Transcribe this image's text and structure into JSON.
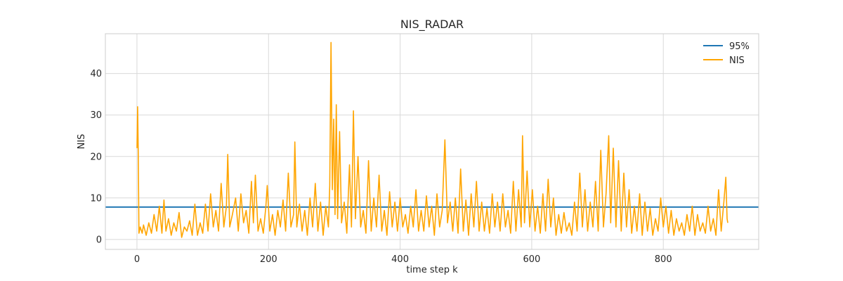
{
  "chart_data": {
    "type": "line",
    "title": "NIS_RADAR",
    "xlabel": "time step k",
    "ylabel": "NIS",
    "xlim": [
      -48,
      945
    ],
    "ylim": [
      -2.4,
      49.6
    ],
    "xticks": [
      0,
      200,
      400,
      600,
      800
    ],
    "yticks": [
      0,
      10,
      20,
      30,
      40
    ],
    "grid": true,
    "legend_position": "top-right",
    "threshold": {
      "name": "95%",
      "value": 7.815,
      "color": "#1f77b4"
    },
    "series": [
      {
        "name": "NIS",
        "color": "#ffa500",
        "points": [
          [
            0,
            22
          ],
          [
            1,
            32
          ],
          [
            2,
            21
          ],
          [
            3,
            1.5
          ],
          [
            5,
            3
          ],
          [
            8,
            1.5
          ],
          [
            10,
            3.5
          ],
          [
            14,
            1
          ],
          [
            18,
            4
          ],
          [
            22,
            1.5
          ],
          [
            26,
            6
          ],
          [
            30,
            2
          ],
          [
            34,
            8
          ],
          [
            38,
            1.5
          ],
          [
            41,
            9.5
          ],
          [
            44,
            2
          ],
          [
            48,
            5
          ],
          [
            52,
            1
          ],
          [
            56,
            4
          ],
          [
            60,
            2
          ],
          [
            64,
            6.5
          ],
          [
            68,
            0.5
          ],
          [
            72,
            3
          ],
          [
            76,
            2
          ],
          [
            80,
            4.5
          ],
          [
            84,
            1
          ],
          [
            88,
            8.5
          ],
          [
            92,
            1
          ],
          [
            96,
            4
          ],
          [
            100,
            1.5
          ],
          [
            104,
            8.5
          ],
          [
            108,
            2
          ],
          [
            112,
            11
          ],
          [
            116,
            3
          ],
          [
            120,
            7
          ],
          [
            124,
            2
          ],
          [
            128,
            13.5
          ],
          [
            132,
            3
          ],
          [
            136,
            8
          ],
          [
            138,
            20.5
          ],
          [
            141,
            3
          ],
          [
            145,
            6
          ],
          [
            150,
            10
          ],
          [
            154,
            2
          ],
          [
            158,
            11
          ],
          [
            162,
            4
          ],
          [
            166,
            7
          ],
          [
            170,
            1.5
          ],
          [
            174,
            14
          ],
          [
            177,
            4
          ],
          [
            180,
            15.5
          ],
          [
            184,
            2
          ],
          [
            188,
            5
          ],
          [
            192,
            1.5
          ],
          [
            196,
            8
          ],
          [
            198,
            13
          ],
          [
            202,
            2
          ],
          [
            206,
            6
          ],
          [
            210,
            1
          ],
          [
            214,
            7
          ],
          [
            218,
            3
          ],
          [
            222,
            9.5
          ],
          [
            226,
            2
          ],
          [
            230,
            16
          ],
          [
            234,
            3
          ],
          [
            238,
            6
          ],
          [
            240,
            23.5
          ],
          [
            243,
            3
          ],
          [
            247,
            8.5
          ],
          [
            251,
            2
          ],
          [
            255,
            7
          ],
          [
            259,
            1
          ],
          [
            263,
            10
          ],
          [
            267,
            3
          ],
          [
            271,
            13.5
          ],
          [
            275,
            2
          ],
          [
            279,
            9
          ],
          [
            283,
            1
          ],
          [
            287,
            8
          ],
          [
            291,
            3
          ],
          [
            293,
            13
          ],
          [
            295,
            47.5
          ],
          [
            297,
            12
          ],
          [
            299,
            29
          ],
          [
            301,
            6
          ],
          [
            303,
            32.5
          ],
          [
            305,
            5
          ],
          [
            308,
            26
          ],
          [
            311,
            4
          ],
          [
            315,
            9
          ],
          [
            319,
            1.5
          ],
          [
            323,
            18
          ],
          [
            326,
            3
          ],
          [
            329,
            31
          ],
          [
            332,
            5
          ],
          [
            336,
            20
          ],
          [
            340,
            3
          ],
          [
            344,
            7
          ],
          [
            348,
            1.5
          ],
          [
            352,
            19
          ],
          [
            356,
            2
          ],
          [
            360,
            10
          ],
          [
            364,
            3
          ],
          [
            368,
            15.5
          ],
          [
            372,
            2
          ],
          [
            376,
            7
          ],
          [
            380,
            1
          ],
          [
            384,
            11.5
          ],
          [
            388,
            3
          ],
          [
            392,
            9
          ],
          [
            396,
            2
          ],
          [
            400,
            10
          ],
          [
            404,
            3
          ],
          [
            408,
            6
          ],
          [
            412,
            1.5
          ],
          [
            416,
            8
          ],
          [
            420,
            3
          ],
          [
            424,
            12
          ],
          [
            428,
            2
          ],
          [
            432,
            7
          ],
          [
            436,
            2
          ],
          [
            440,
            10.5
          ],
          [
            444,
            3
          ],
          [
            448,
            8
          ],
          [
            452,
            1
          ],
          [
            456,
            11
          ],
          [
            460,
            3
          ],
          [
            464,
            7
          ],
          [
            468,
            24
          ],
          [
            472,
            4
          ],
          [
            476,
            9
          ],
          [
            480,
            2
          ],
          [
            484,
            10
          ],
          [
            488,
            1.5
          ],
          [
            492,
            17
          ],
          [
            496,
            2
          ],
          [
            500,
            9.5
          ],
          [
            504,
            1
          ],
          [
            508,
            11
          ],
          [
            512,
            3
          ],
          [
            516,
            14
          ],
          [
            520,
            2
          ],
          [
            524,
            9
          ],
          [
            528,
            2
          ],
          [
            532,
            7.5
          ],
          [
            536,
            1.5
          ],
          [
            540,
            11
          ],
          [
            544,
            3
          ],
          [
            548,
            9
          ],
          [
            552,
            2
          ],
          [
            556,
            11
          ],
          [
            560,
            3
          ],
          [
            564,
            7
          ],
          [
            568,
            1.5
          ],
          [
            572,
            14
          ],
          [
            576,
            2
          ],
          [
            580,
            12
          ],
          [
            584,
            3
          ],
          [
            586,
            25
          ],
          [
            589,
            4
          ],
          [
            593,
            16.5
          ],
          [
            597,
            3
          ],
          [
            601,
            12
          ],
          [
            605,
            2
          ],
          [
            609,
            8
          ],
          [
            613,
            1.5
          ],
          [
            617,
            11
          ],
          [
            621,
            2
          ],
          [
            625,
            14.5
          ],
          [
            629,
            3
          ],
          [
            633,
            10
          ],
          [
            637,
            1
          ],
          [
            641,
            6
          ],
          [
            645,
            1.5
          ],
          [
            649,
            6.5
          ],
          [
            653,
            2
          ],
          [
            657,
            4
          ],
          [
            661,
            1
          ],
          [
            665,
            9
          ],
          [
            669,
            2
          ],
          [
            673,
            16
          ],
          [
            677,
            3
          ],
          [
            681,
            12
          ],
          [
            685,
            2
          ],
          [
            689,
            9
          ],
          [
            693,
            3
          ],
          [
            697,
            14
          ],
          [
            701,
            2
          ],
          [
            705,
            21.5
          ],
          [
            709,
            3
          ],
          [
            713,
            11
          ],
          [
            717,
            25
          ],
          [
            720,
            4
          ],
          [
            724,
            22
          ],
          [
            728,
            3
          ],
          [
            732,
            19
          ],
          [
            736,
            2
          ],
          [
            740,
            16
          ],
          [
            744,
            3
          ],
          [
            748,
            12
          ],
          [
            752,
            1.5
          ],
          [
            756,
            8
          ],
          [
            760,
            2
          ],
          [
            764,
            11
          ],
          [
            768,
            1
          ],
          [
            772,
            9
          ],
          [
            776,
            2
          ],
          [
            780,
            7.5
          ],
          [
            784,
            1
          ],
          [
            788,
            5
          ],
          [
            792,
            2
          ],
          [
            796,
            10
          ],
          [
            800,
            3
          ],
          [
            804,
            8
          ],
          [
            808,
            1.5
          ],
          [
            812,
            7
          ],
          [
            816,
            1
          ],
          [
            820,
            5
          ],
          [
            824,
            2
          ],
          [
            828,
            4
          ],
          [
            832,
            1
          ],
          [
            836,
            6
          ],
          [
            840,
            2
          ],
          [
            844,
            8
          ],
          [
            848,
            1
          ],
          [
            852,
            6
          ],
          [
            856,
            2
          ],
          [
            860,
            4
          ],
          [
            864,
            1.5
          ],
          [
            868,
            8
          ],
          [
            872,
            2
          ],
          [
            876,
            5
          ],
          [
            880,
            1
          ],
          [
            884,
            12
          ],
          [
            888,
            2
          ],
          [
            892,
            9
          ],
          [
            895,
            15
          ],
          [
            897,
            5
          ],
          [
            898,
            4
          ]
        ]
      }
    ]
  }
}
